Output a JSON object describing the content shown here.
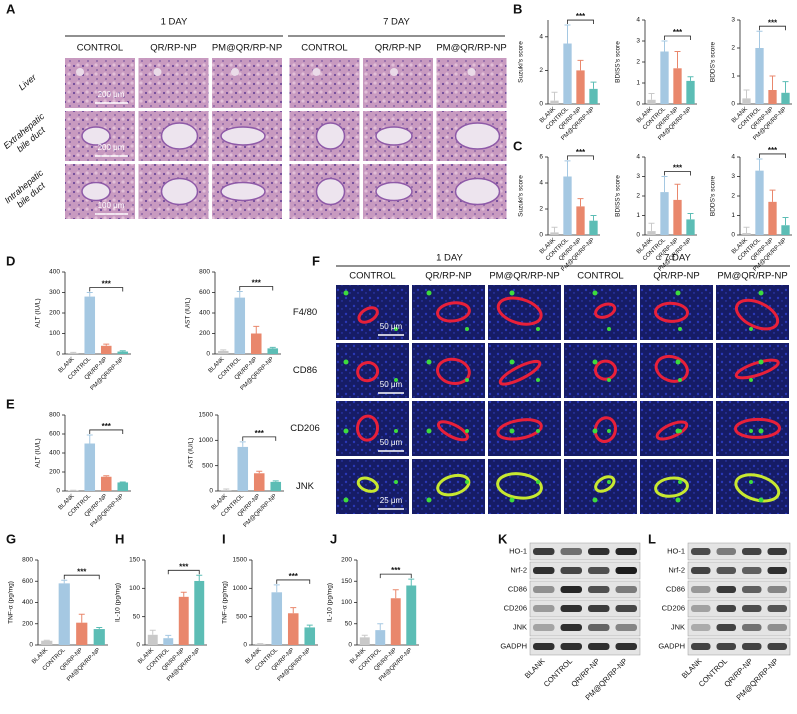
{
  "histology": {
    "letter": "A",
    "groups": [
      "1 DAY",
      "7 DAY"
    ],
    "columns": [
      "CONTROL",
      "QR/RP-NP",
      "PM@QR/RP-NP",
      "CONTROL",
      "QR/RP-NP",
      "PM@QR/RP-NP"
    ],
    "rows": [
      [
        "Liver"
      ],
      [
        "Extrahepatic",
        "bile duct"
      ],
      [
        "Intrahepatic",
        "bile duct"
      ]
    ],
    "scale_bars": [
      "200 μm",
      "200 μm",
      "100 μm"
    ]
  },
  "immunofluorescence": {
    "letter": "F",
    "groups": [
      "1 DAY",
      "7 DAY"
    ],
    "columns": [
      "CONTROL",
      "QR/RP-NP",
      "PM@QR/RP-NP",
      "CONTROL",
      "QR/RP-NP",
      "PM@QR/RP-NP"
    ],
    "rows": [
      "F4/80",
      "CD86",
      "CD206",
      "JNK"
    ],
    "scale_bars": [
      "50 μm",
      "50 μm",
      "50 μm",
      "25 μm"
    ]
  },
  "western_blots": [
    {
      "letter": "K",
      "proteins": [
        "HO-1",
        "Nrf-2",
        "CD86",
        "CD206",
        "JNK",
        "GADPH"
      ],
      "lanes": [
        "BLANK",
        "CONTROL",
        "QR/RP-NP",
        "PM@QR/RP-NP"
      ]
    },
    {
      "letter": "L",
      "proteins": [
        "HO-1",
        "Nrf-2",
        "CD86",
        "CD206",
        "JNK",
        "GADPH"
      ],
      "lanes": [
        "BLANK",
        "CONTROL",
        "QR/RP-NP",
        "PM@QR/RP-NP"
      ]
    }
  ],
  "chart_letters": [
    "B",
    "C",
    "D",
    "E",
    "G",
    "H",
    "I",
    "J"
  ],
  "chart_data": [
    {
      "type": "bar",
      "ylabel": "Suzuki's score",
      "categories": [
        "BLANK",
        "CONTROL",
        "QR/RP-NP",
        "PM@QR/RP-NP"
      ],
      "values": [
        0.2,
        3.6,
        2.0,
        0.9
      ],
      "errors": [
        0.5,
        1.1,
        0.6,
        0.4
      ],
      "colors": [
        "#c9c9c9",
        "#a5c8e2",
        "#e9876c",
        "#5cbdb5"
      ],
      "ylim": [
        0,
        5
      ],
      "yticks": [
        0,
        2,
        4
      ],
      "significance": "***"
    },
    {
      "type": "bar",
      "ylabel": "BDISS's score",
      "categories": [
        "BLANK",
        "CONTROL",
        "QR/RP-NP",
        "PM@QR/RP-NP"
      ],
      "values": [
        0.2,
        2.5,
        1.7,
        1.1
      ],
      "errors": [
        0.3,
        0.5,
        0.8,
        0.2
      ],
      "colors": [
        "#c9c9c9",
        "#a5c8e2",
        "#e9876c",
        "#5cbdb5"
      ],
      "ylim": [
        0,
        4
      ],
      "yticks": [
        0,
        1,
        2,
        3,
        4
      ],
      "significance": "***"
    },
    {
      "type": "bar",
      "ylabel": "BDDS's score",
      "categories": [
        "BLANK",
        "CONTROL",
        "QR/RP-NP",
        "PM@QR/RP-NP"
      ],
      "values": [
        0.2,
        2.0,
        0.5,
        0.4
      ],
      "errors": [
        0.3,
        0.6,
        0.5,
        0.4
      ],
      "colors": [
        "#c9c9c9",
        "#a5c8e2",
        "#e9876c",
        "#5cbdb5"
      ],
      "ylim": [
        0,
        3
      ],
      "yticks": [
        0,
        1,
        2,
        3
      ],
      "significance": "***"
    },
    {
      "type": "bar",
      "ylabel": "Suzuki's score",
      "categories": [
        "BLANK",
        "CONTROL",
        "QR/RP-NP",
        "PM@QR/RP-NP"
      ],
      "values": [
        0.2,
        4.5,
        2.2,
        1.1
      ],
      "errors": [
        0.4,
        1.2,
        0.6,
        0.4
      ],
      "colors": [
        "#c9c9c9",
        "#a5c8e2",
        "#e9876c",
        "#5cbdb5"
      ],
      "ylim": [
        0,
        6
      ],
      "yticks": [
        0,
        2,
        4,
        6
      ],
      "significance": "***"
    },
    {
      "type": "bar",
      "ylabel": "BDISS's score",
      "categories": [
        "BLANK",
        "CONTROL",
        "QR/RP-NP",
        "PM@QR/RP-NP"
      ],
      "values": [
        0.2,
        2.2,
        1.8,
        0.8
      ],
      "errors": [
        0.4,
        0.8,
        0.8,
        0.3
      ],
      "colors": [
        "#c9c9c9",
        "#a5c8e2",
        "#e9876c",
        "#5cbdb5"
      ],
      "ylim": [
        0,
        4
      ],
      "yticks": [
        0,
        1,
        2,
        3,
        4
      ],
      "significance": "***"
    },
    {
      "type": "bar",
      "ylabel": "BDDS's score",
      "categories": [
        "BLANK",
        "CONTROL",
        "QR/RP-NP",
        "PM@QR/RP-NP"
      ],
      "values": [
        0.1,
        3.3,
        1.7,
        0.5
      ],
      "errors": [
        0.3,
        0.6,
        0.6,
        0.4
      ],
      "colors": [
        "#c9c9c9",
        "#a5c8e2",
        "#e9876c",
        "#5cbdb5"
      ],
      "ylim": [
        0,
        4
      ],
      "yticks": [
        0,
        1,
        2,
        3,
        4
      ],
      "significance": "***"
    },
    {
      "type": "bar",
      "ylabel": "ALT (IU/L)",
      "categories": [
        "BLANK",
        "CONTROL",
        "QR/RP-NP",
        "PM@QR/RP-NP"
      ],
      "values": [
        5,
        280,
        40,
        12
      ],
      "errors": [
        3,
        20,
        8,
        4
      ],
      "colors": [
        "#c9c9c9",
        "#a5c8e2",
        "#e9876c",
        "#5cbdb5"
      ],
      "ylim": [
        0,
        400
      ],
      "yticks": [
        0,
        100,
        200,
        300,
        400
      ],
      "significance": "***"
    },
    {
      "type": "bar",
      "ylabel": "AST (IU/L)",
      "categories": [
        "BLANK",
        "CONTROL",
        "QR/RP-NP",
        "PM@QR/RP-NP"
      ],
      "values": [
        30,
        550,
        200,
        55
      ],
      "errors": [
        10,
        60,
        70,
        10
      ],
      "colors": [
        "#c9c9c9",
        "#a5c8e2",
        "#e9876c",
        "#5cbdb5"
      ],
      "ylim": [
        0,
        800
      ],
      "yticks": [
        0,
        200,
        400,
        600,
        800
      ],
      "significance": "***"
    },
    {
      "type": "bar",
      "ylabel": "ALT (IU/L)",
      "categories": [
        "BLANK",
        "CONTROL",
        "QR/RP-NP",
        "PM@QR/RP-NP"
      ],
      "values": [
        5,
        500,
        150,
        90
      ],
      "errors": [
        3,
        90,
        10,
        5
      ],
      "colors": [
        "#c9c9c9",
        "#a5c8e2",
        "#e9876c",
        "#5cbdb5"
      ],
      "ylim": [
        0,
        800
      ],
      "yticks": [
        0,
        200,
        400,
        600,
        800
      ],
      "significance": "***"
    },
    {
      "type": "bar",
      "ylabel": "AST (IU/L)",
      "categories": [
        "BLANK",
        "CONTROL",
        "QR/RP-NP",
        "PM@QR/RP-NP"
      ],
      "values": [
        20,
        870,
        350,
        180
      ],
      "errors": [
        20,
        100,
        40,
        20
      ],
      "colors": [
        "#c9c9c9",
        "#a5c8e2",
        "#e9876c",
        "#5cbdb5"
      ],
      "ylim": [
        0,
        1500
      ],
      "yticks": [
        0,
        500,
        1000,
        1500
      ],
      "significance": "***"
    },
    {
      "type": "bar",
      "ylabel": "TNF-α (pg/mg)",
      "categories": [
        "BLANK",
        "CONTROL",
        "QR/RP-NP",
        "PM@QR/RP-NP"
      ],
      "values": [
        40,
        580,
        210,
        150
      ],
      "errors": [
        5,
        30,
        80,
        15
      ],
      "colors": [
        "#c9c9c9",
        "#a5c8e2",
        "#e9876c",
        "#5cbdb5"
      ],
      "ylim": [
        0,
        800
      ],
      "yticks": [
        0,
        200,
        400,
        600,
        800
      ],
      "significance": "***"
    },
    {
      "type": "bar",
      "ylabel": "IL-10 (pg/mg)",
      "categories": [
        "BLANK",
        "CONTROL",
        "QR/RP-NP",
        "PM@QR/RP-NP"
      ],
      "values": [
        18,
        12,
        85,
        113
      ],
      "errors": [
        8,
        5,
        8,
        10
      ],
      "colors": [
        "#c9c9c9",
        "#a5c8e2",
        "#e9876c",
        "#5cbdb5"
      ],
      "ylim": [
        0,
        150
      ],
      "yticks": [
        0,
        50,
        100,
        150
      ],
      "significance": "***"
    },
    {
      "type": "bar",
      "ylabel": "TNF-α (pg/mg)",
      "categories": [
        "BLANK",
        "CONTROL",
        "QR/RP-NP",
        "PM@QR/RP-NP"
      ],
      "values": [
        20,
        930,
        560,
        310
      ],
      "errors": [
        5,
        130,
        100,
        40
      ],
      "colors": [
        "#c9c9c9",
        "#a5c8e2",
        "#e9876c",
        "#5cbdb5"
      ],
      "ylim": [
        0,
        1500
      ],
      "yticks": [
        0,
        500,
        1000,
        1500
      ],
      "significance": "***"
    },
    {
      "type": "bar",
      "ylabel": "IL-10 (pg/mg)",
      "categories": [
        "BLANK",
        "CONTROL",
        "QR/RP-NP",
        "PM@QR/RP-NP"
      ],
      "values": [
        18,
        35,
        110,
        140
      ],
      "errors": [
        5,
        15,
        20,
        15
      ],
      "colors": [
        "#c9c9c9",
        "#a5c8e2",
        "#e9876c",
        "#5cbdb5"
      ],
      "ylim": [
        0,
        200
      ],
      "yticks": [
        0,
        50,
        100,
        150,
        200
      ],
      "significance": "***"
    }
  ]
}
